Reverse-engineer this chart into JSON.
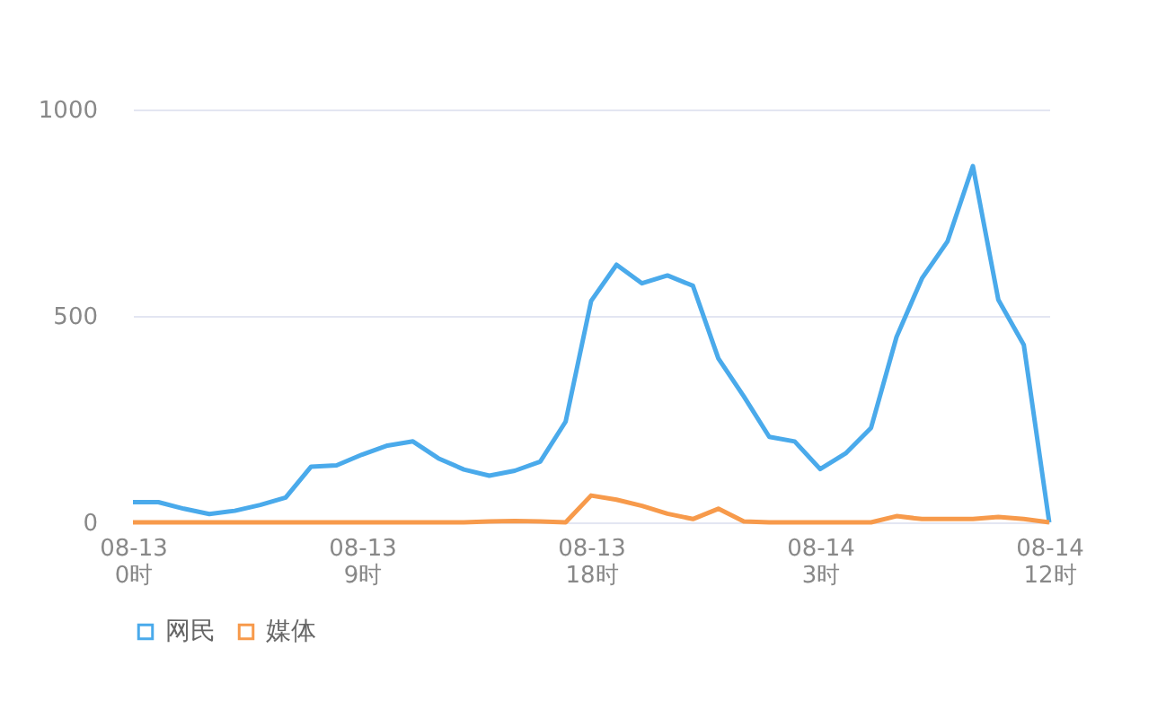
{
  "chart_data": {
    "type": "line",
    "categories": [
      "08-13\n0时",
      null,
      null,
      null,
      null,
      null,
      null,
      null,
      null,
      "08-13\n9时",
      null,
      null,
      null,
      null,
      null,
      null,
      null,
      null,
      "08-13\n18时",
      null,
      null,
      null,
      null,
      null,
      null,
      null,
      null,
      "08-14\n3时",
      null,
      null,
      null,
      null,
      null,
      null,
      null,
      null,
      "08-14\n12时"
    ],
    "series": [
      {
        "name": "网民",
        "color": "#4aaaeb",
        "values": [
          49,
          49,
          33,
          20,
          28,
          42,
          60,
          135,
          138,
          164,
          186,
          196,
          155,
          128,
          113,
          125,
          147,
          244,
          536,
          624,
          579,
          598,
          573,
          397,
          305,
          207,
          196,
          129,
          167,
          229,
          449,
          591,
          680,
          863,
          539,
          430,
          0
        ]
      },
      {
        "name": "媒体",
        "color": "#f79a4b",
        "values": [
          0,
          0,
          0,
          0,
          0,
          0,
          0,
          0,
          0,
          0,
          0,
          0,
          0,
          0,
          2,
          3,
          2,
          0,
          65,
          55,
          40,
          21,
          8,
          33,
          2,
          0,
          0,
          0,
          0,
          0,
          15,
          8,
          8,
          8,
          13,
          8,
          0
        ]
      }
    ],
    "ylim": [
      0,
      1000
    ],
    "yticks": [
      0,
      500,
      1000
    ],
    "grid": "y",
    "legend": "bottom"
  }
}
